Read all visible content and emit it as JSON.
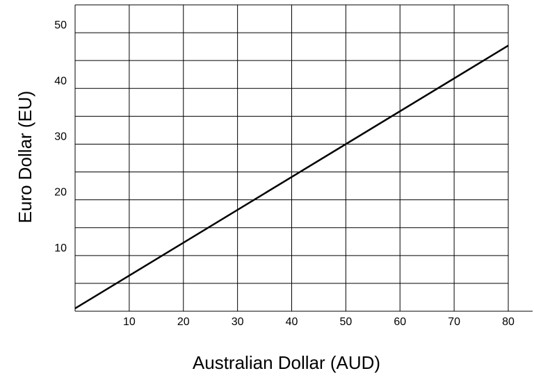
{
  "chart_data": {
    "type": "line",
    "title": "",
    "xlabel": "Australian Dollar (AUD)",
    "ylabel": "Euro Dollar (EU)",
    "xlim": [
      0,
      80
    ],
    "ylim": [
      0,
      55
    ],
    "x_ticks": [
      10,
      20,
      30,
      40,
      50,
      60,
      70,
      80
    ],
    "y_ticks": [
      10,
      20,
      30,
      40,
      50
    ],
    "x_gridlines": [
      0,
      10,
      20,
      30,
      40,
      50,
      60,
      70,
      80
    ],
    "y_gridlines": [
      0,
      5,
      10,
      15,
      20,
      25,
      30,
      35,
      40,
      45,
      50,
      55
    ],
    "grid": true,
    "legend": false,
    "series": [
      {
        "x": [
          0,
          80
        ],
        "y": [
          0.5,
          47.7
        ],
        "color": "#000000"
      }
    ]
  }
}
